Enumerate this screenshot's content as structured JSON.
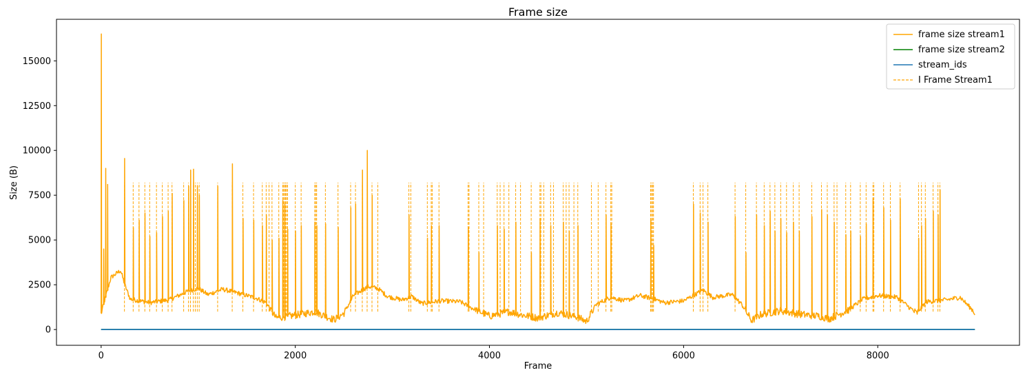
{
  "chart_data": {
    "type": "line",
    "title": "Frame size",
    "xlabel": "Frame",
    "ylabel": "Size (B)",
    "xlim": [
      -460,
      9460
    ],
    "ylim": [
      -880,
      17320
    ],
    "xticks": [
      0,
      2000,
      4000,
      6000,
      8000
    ],
    "yticks": [
      0,
      2500,
      5000,
      7500,
      10000,
      12500,
      15000
    ],
    "grid": false,
    "legend_position": "top-right",
    "legend": [
      "frame size stream1",
      "frame size stream2",
      "stream_ids",
      "I Frame Stream1"
    ],
    "series": [
      {
        "name": "frame size stream1",
        "color": "#ffa500",
        "style": "solid",
        "baseline": [
          [
            0,
            900
          ],
          [
            100,
            2900
          ],
          [
            200,
            3300
          ],
          [
            250,
            2400
          ],
          [
            300,
            1700
          ],
          [
            500,
            1500
          ],
          [
            700,
            1650
          ],
          [
            900,
            2150
          ],
          [
            1000,
            2300
          ],
          [
            1100,
            1950
          ],
          [
            1250,
            2250
          ],
          [
            1400,
            2050
          ],
          [
            1600,
            1750
          ],
          [
            1700,
            1500
          ],
          [
            1800,
            650
          ],
          [
            2000,
            800
          ],
          [
            2200,
            1000
          ],
          [
            2400,
            550
          ],
          [
            2500,
            900
          ],
          [
            2600,
            1900
          ],
          [
            2750,
            2400
          ],
          [
            2850,
            2300
          ],
          [
            2950,
            1850
          ],
          [
            3100,
            1650
          ],
          [
            3200,
            1850
          ],
          [
            3300,
            1450
          ],
          [
            3500,
            1600
          ],
          [
            3700,
            1550
          ],
          [
            3800,
            1250
          ],
          [
            4000,
            750
          ],
          [
            4200,
            1000
          ],
          [
            4350,
            800
          ],
          [
            4500,
            650
          ],
          [
            4700,
            950
          ],
          [
            4900,
            700
          ],
          [
            5000,
            450
          ],
          [
            5100,
            1400
          ],
          [
            5250,
            1800
          ],
          [
            5400,
            1600
          ],
          [
            5550,
            1900
          ],
          [
            5700,
            1700
          ],
          [
            5800,
            1500
          ],
          [
            6000,
            1600
          ],
          [
            6200,
            2200
          ],
          [
            6300,
            1800
          ],
          [
            6500,
            1950
          ],
          [
            6600,
            1400
          ],
          [
            6700,
            500
          ],
          [
            6800,
            850
          ],
          [
            7000,
            1050
          ],
          [
            7200,
            850
          ],
          [
            7400,
            750
          ],
          [
            7500,
            600
          ],
          [
            7700,
            1100
          ],
          [
            7850,
            1700
          ],
          [
            8000,
            1900
          ],
          [
            8200,
            1800
          ],
          [
            8400,
            900
          ],
          [
            8500,
            1550
          ],
          [
            8700,
            1650
          ],
          [
            8850,
            1800
          ],
          [
            9000,
            950
          ]
        ],
        "spikes": [
          [
            0,
            16500
          ],
          [
            25,
            4500
          ],
          [
            45,
            9000
          ],
          [
            65,
            8100
          ],
          [
            240,
            9550
          ],
          [
            330,
            5700
          ],
          [
            390,
            6100
          ],
          [
            450,
            6500
          ],
          [
            500,
            5200
          ],
          [
            570,
            5400
          ],
          [
            630,
            6300
          ],
          [
            690,
            6600
          ],
          [
            730,
            7600
          ],
          [
            850,
            7200
          ],
          [
            900,
            8000
          ],
          [
            920,
            8900
          ],
          [
            950,
            8950
          ],
          [
            990,
            8000
          ],
          [
            1010,
            7500
          ],
          [
            1200,
            8000
          ],
          [
            1350,
            9250
          ],
          [
            1460,
            6200
          ],
          [
            1570,
            6100
          ],
          [
            1660,
            5800
          ],
          [
            1700,
            6400
          ],
          [
            1760,
            5000
          ],
          [
            1830,
            5100
          ],
          [
            1870,
            7200
          ],
          [
            1890,
            7000
          ],
          [
            1920,
            5600
          ],
          [
            2000,
            5500
          ],
          [
            2060,
            5800
          ],
          [
            2200,
            6000
          ],
          [
            2220,
            5800
          ],
          [
            2310,
            5900
          ],
          [
            2440,
            5700
          ],
          [
            2570,
            6800
          ],
          [
            2620,
            7000
          ],
          [
            2690,
            8900
          ],
          [
            2740,
            10000
          ],
          [
            2790,
            7500
          ],
          [
            3170,
            6400
          ],
          [
            3360,
            5100
          ],
          [
            3400,
            5800
          ],
          [
            3480,
            5800
          ],
          [
            3780,
            5700
          ],
          [
            3890,
            4300
          ],
          [
            4080,
            5800
          ],
          [
            4150,
            5600
          ],
          [
            4270,
            6000
          ],
          [
            4430,
            4300
          ],
          [
            4520,
            6200
          ],
          [
            4630,
            5800
          ],
          [
            4760,
            6000
          ],
          [
            4820,
            5500
          ],
          [
            4910,
            5800
          ],
          [
            5200,
            6400
          ],
          [
            5250,
            5900
          ],
          [
            5660,
            6100
          ],
          [
            5690,
            4700
          ],
          [
            6100,
            7000
          ],
          [
            6170,
            6500
          ],
          [
            6250,
            6000
          ],
          [
            6530,
            6300
          ],
          [
            6640,
            4300
          ],
          [
            6750,
            6400
          ],
          [
            6830,
            5800
          ],
          [
            6890,
            6600
          ],
          [
            6940,
            5500
          ],
          [
            7000,
            6200
          ],
          [
            7060,
            5400
          ],
          [
            7130,
            6000
          ],
          [
            7190,
            5500
          ],
          [
            7320,
            6300
          ],
          [
            7420,
            6700
          ],
          [
            7480,
            6400
          ],
          [
            7550,
            6000
          ],
          [
            7670,
            5300
          ],
          [
            7720,
            5500
          ],
          [
            7820,
            5200
          ],
          [
            7880,
            5900
          ],
          [
            7950,
            7300
          ],
          [
            8060,
            6800
          ],
          [
            8130,
            6100
          ],
          [
            8230,
            7300
          ],
          [
            8420,
            5100
          ],
          [
            8450,
            5800
          ],
          [
            8490,
            6200
          ],
          [
            8570,
            6600
          ],
          [
            8620,
            6400
          ],
          [
            8640,
            7800
          ]
        ]
      },
      {
        "name": "frame size stream2",
        "color": "#008000",
        "style": "solid",
        "points": [
          [
            0,
            0
          ],
          [
            9000,
            0
          ]
        ]
      },
      {
        "name": "stream_ids",
        "color": "#1f77b4",
        "style": "solid",
        "points": [
          [
            0,
            0
          ],
          [
            9000,
            0
          ]
        ]
      },
      {
        "name": "I Frame Stream1",
        "color": "#ffa500",
        "style": "dashed",
        "ymin": 1000,
        "ymax": 8200,
        "x": [
          240,
          330,
          390,
          450,
          500,
          570,
          630,
          690,
          730,
          850,
          900,
          920,
          950,
          970,
          990,
          1010,
          1200,
          1350,
          1460,
          1570,
          1660,
          1700,
          1730,
          1760,
          1830,
          1870,
          1880,
          1890,
          1900,
          1910,
          1920,
          2000,
          2060,
          2200,
          2210,
          2220,
          2310,
          2440,
          2570,
          2620,
          2690,
          2740,
          2790,
          2850,
          3170,
          3190,
          3360,
          3400,
          3410,
          3480,
          3780,
          3790,
          3890,
          3940,
          4080,
          4110,
          4150,
          4200,
          4270,
          4320,
          4430,
          4520,
          4530,
          4560,
          4630,
          4660,
          4760,
          4790,
          4820,
          4870,
          4910,
          5050,
          5120,
          5200,
          5250,
          5260,
          5660,
          5670,
          5680,
          5690,
          6100,
          6170,
          6200,
          6250,
          6530,
          6640,
          6750,
          6830,
          6890,
          6940,
          7000,
          7060,
          7130,
          7190,
          7320,
          7420,
          7480,
          7550,
          7580,
          7670,
          7720,
          7820,
          7880,
          7950,
          7960,
          8060,
          8130,
          8230,
          8420,
          8450,
          8490,
          8570,
          8620,
          8640
        ]
      }
    ]
  }
}
